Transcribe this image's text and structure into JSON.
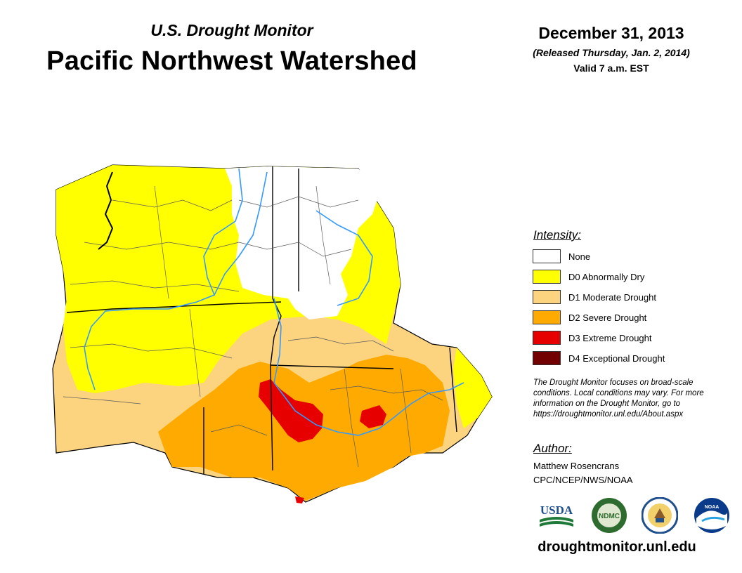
{
  "header": {
    "subtitle": "U.S. Drought Monitor",
    "title": "Pacific Northwest Watershed",
    "date": "December 31, 2013",
    "released": "(Released Thursday, Jan. 2, 2014)",
    "valid": "Valid 7 a.m. EST"
  },
  "legend": {
    "title": "Intensity:",
    "items": [
      {
        "label": "None",
        "color": "#ffffff"
      },
      {
        "label": "D0 Abnormally Dry",
        "color": "#ffff00"
      },
      {
        "label": "D1 Moderate Drought",
        "color": "#fcd37f"
      },
      {
        "label": "D2 Severe Drought",
        "color": "#ffaa00"
      },
      {
        "label": "D3 Extreme Drought",
        "color": "#e60000"
      },
      {
        "label": "D4 Exceptional Drought",
        "color": "#730000"
      }
    ]
  },
  "note": "The Drought Monitor focuses on broad-scale conditions. Local conditions may vary. For more information on the Drought Monitor, go to https://droughtmonitor.unl.edu/About.aspx",
  "author": {
    "title": "Author:",
    "name": "Matthew Rosencrans",
    "org": "CPC/NCEP/NWS/NOAA"
  },
  "logos": {
    "usda": "USDA",
    "ndmc": "NDMC",
    "noaa": "NOAA"
  },
  "footer": {
    "site": "droughtmonitor.unl.edu"
  },
  "colors": {
    "river": "#3399ff",
    "boundary": "#000000"
  }
}
